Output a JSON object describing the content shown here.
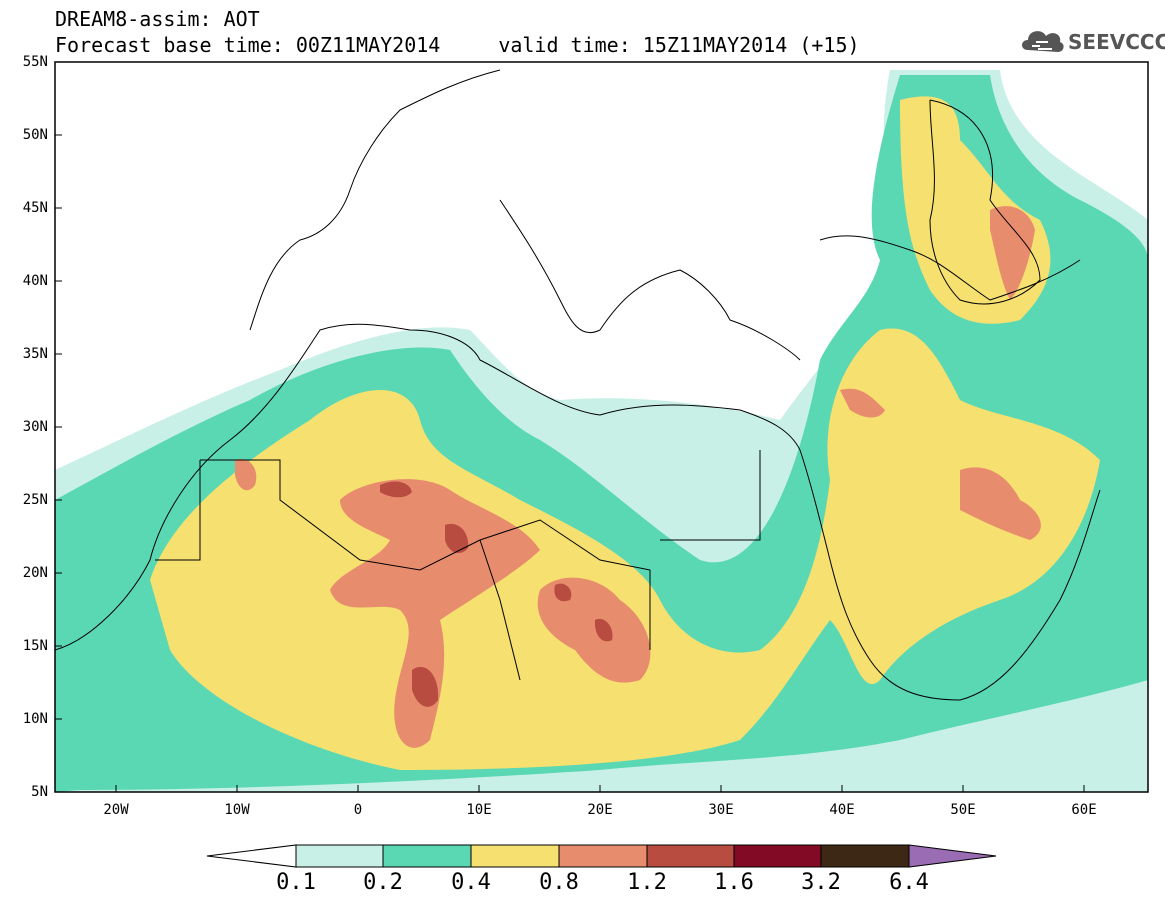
{
  "title": {
    "line1": "DREAM8-assim: AOT",
    "line2_base": "Forecast base time: 00Z11MAY2014",
    "line2_valid": "valid time: 15Z11MAY2014 (+15)"
  },
  "logo": {
    "text": "SEEVCCC",
    "icon": "cloud-icon"
  },
  "map": {
    "lon_range": [
      -25,
      65
    ],
    "lat_range": [
      5,
      55
    ],
    "lat_ticks": [
      "55N",
      "50N",
      "45N",
      "40N",
      "35N",
      "30N",
      "25N",
      "20N",
      "15N",
      "10N",
      "5N"
    ],
    "lon_ticks": [
      "20W",
      "10W",
      "0",
      "10E",
      "20E",
      "30E",
      "40E",
      "50E",
      "60E"
    ],
    "variable": "AOT",
    "region": "Europe / North Africa / Middle East"
  },
  "colorbar": {
    "labels": [
      "0.1",
      "0.2",
      "0.4",
      "0.8",
      "1.2",
      "1.6",
      "3.2",
      "6.4"
    ],
    "colors": [
      "#c8f0e6",
      "#5ad8b4",
      "#f5e070",
      "#e88c6e",
      "#b84c40",
      "#820a24",
      "#3c2814",
      "#9a6cb4"
    ]
  }
}
